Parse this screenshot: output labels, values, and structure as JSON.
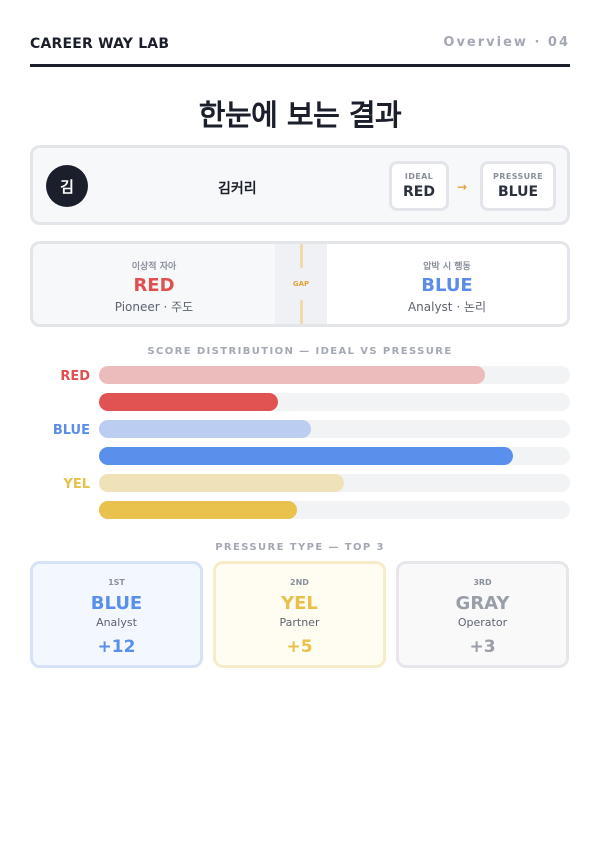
{
  "header": {
    "brand": "CAREER WAY LAB",
    "page_tag": "Overview · 04"
  },
  "title": "한눈에 보는 결과",
  "profile": {
    "avatar_initial": "김",
    "name": "김커리",
    "ideal_label": "IDEAL",
    "ideal_value": "RED",
    "arrow": "→",
    "pressure_label": "PRESSURE",
    "pressure_value": "BLUE"
  },
  "compare": {
    "left": {
      "label": "이상적 자아",
      "value": "RED",
      "sub": "Pioneer · 주도"
    },
    "gap_label": "GAP",
    "right": {
      "label": "압박 시 행동",
      "value": "BLUE",
      "sub": "Analyst · 논리"
    }
  },
  "chart_data": {
    "type": "bar",
    "title": "SCORE DISTRIBUTION — IDEAL VS PRESSURE",
    "orientation": "horizontal",
    "categories": [
      "RED",
      "BLUE",
      "YEL"
    ],
    "xlim": [
      0,
      100
    ],
    "series": [
      {
        "name": "IDEAL",
        "values": [
          82,
          45,
          52
        ]
      },
      {
        "name": "PRESSURE",
        "values": [
          38,
          88,
          42
        ]
      }
    ],
    "colors": {
      "RED": {
        "label": "#e05050",
        "ideal": "#ecbcbc",
        "pressure": "#e15252"
      },
      "BLUE": {
        "label": "#5b8de8",
        "ideal": "#bccdf2",
        "pressure": "#5b8fec"
      },
      "YEL": {
        "label": "#e8c04a",
        "ideal": "#f0e2b8",
        "pressure": "#e8c24c"
      }
    },
    "track_color": "#f2f3f5"
  },
  "top3": {
    "title": "PRESSURE TYPE — TOP 3",
    "items": [
      {
        "rank": "1ST",
        "name": "BLUE",
        "role": "Analyst",
        "score": "+12",
        "color": "#5b8fec",
        "bg": "#f3f7ff",
        "border": "#d6e2f7"
      },
      {
        "rank": "2ND",
        "name": "YEL",
        "role": "Partner",
        "score": "+5",
        "color": "#e8c04a",
        "bg": "#fffcf2",
        "border": "#f6ecc8"
      },
      {
        "rank": "3RD",
        "name": "GRAY",
        "role": "Operator",
        "score": "+3",
        "color": "#9a9ea8",
        "bg": "#f9f9fa",
        "border": "#e6e7ea"
      }
    ]
  }
}
